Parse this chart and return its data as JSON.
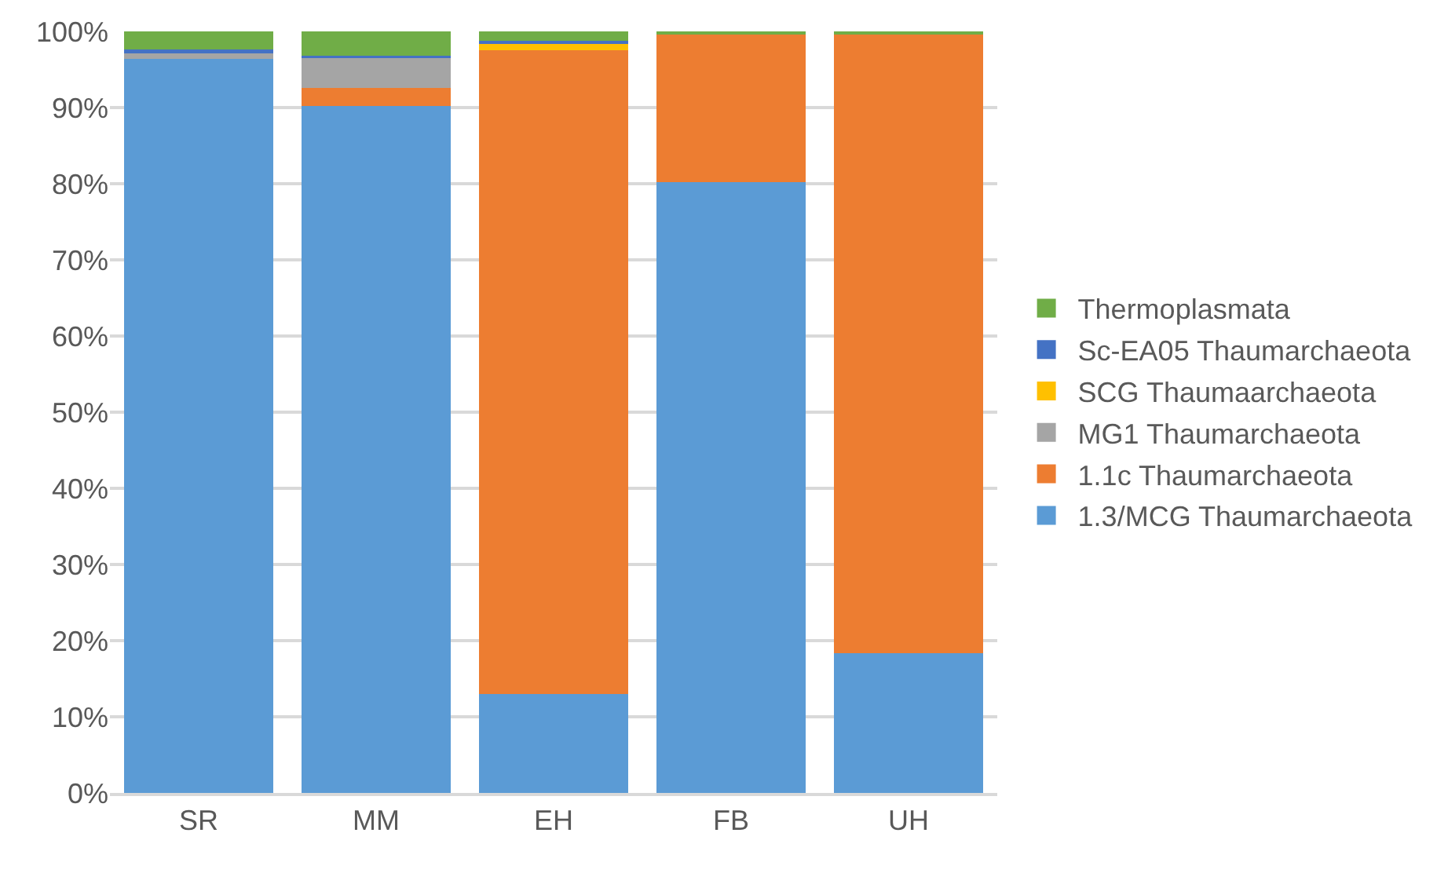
{
  "chart_data": {
    "type": "bar",
    "stacked": true,
    "categories": [
      "SR",
      "MM",
      "EH",
      "FB",
      "UH"
    ],
    "series": [
      {
        "name": "1.3/MCG Thaumarchaeota",
        "color": "#5b9bd5",
        "values": [
          96.4,
          90.2,
          13.0,
          80.2,
          18.3
        ]
      },
      {
        "name": "1.1c Thaumarchaeota",
        "color": "#ed7d31",
        "values": [
          0,
          2.4,
          84.5,
          19.5,
          81.4
        ]
      },
      {
        "name": "MG1 Thaumarchaeota",
        "color": "#a5a5a5",
        "values": [
          0.9,
          3.9,
          0,
          0,
          0
        ]
      },
      {
        "name": "SCG Thaumaarchaeota",
        "color": "#ffc000",
        "values": [
          0,
          0,
          1.0,
          0,
          0
        ]
      },
      {
        "name": "Sc-EA05 Thaumarchaeota",
        "color": "#4472c4",
        "values": [
          0.3,
          0.3,
          0.3,
          0,
          0
        ]
      },
      {
        "name": "Thermoplasmata",
        "color": "#70ad47",
        "values": [
          2.4,
          3.2,
          1.2,
          0.3,
          0.3
        ]
      }
    ],
    "ylim": [
      0,
      100
    ],
    "yticks": [
      {
        "value": 0,
        "label": "0%"
      },
      {
        "value": 10,
        "label": "10%"
      },
      {
        "value": 20,
        "label": "20%"
      },
      {
        "value": 30,
        "label": "30%"
      },
      {
        "value": 40,
        "label": "40%"
      },
      {
        "value": 50,
        "label": "50%"
      },
      {
        "value": 60,
        "label": "60%"
      },
      {
        "value": 70,
        "label": "70%"
      },
      {
        "value": 80,
        "label": "80%"
      },
      {
        "value": 90,
        "label": "90%"
      },
      {
        "value": 100,
        "label": "100%"
      }
    ],
    "grid": "y",
    "legend": "right"
  }
}
